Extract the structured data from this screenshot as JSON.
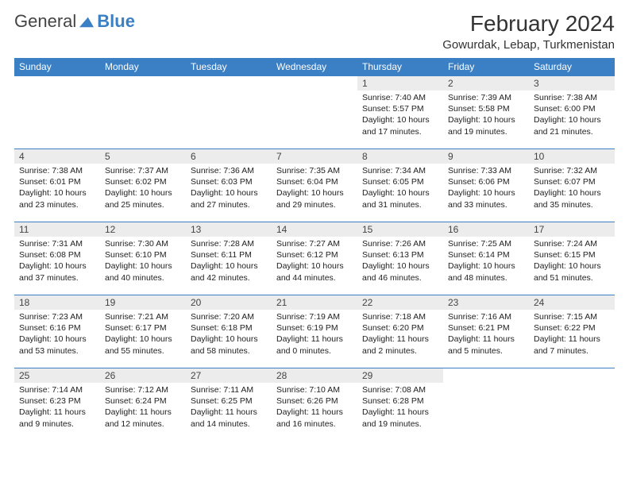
{
  "logo": {
    "text1": "General",
    "text2": "Blue"
  },
  "title": "February 2024",
  "location": "Gowurdak, Lebap, Turkmenistan",
  "colors": {
    "header_bg": "#3b7fc4",
    "daynum_bg": "#ececec",
    "border": "#3b7fc4"
  },
  "weekdays": [
    "Sunday",
    "Monday",
    "Tuesday",
    "Wednesday",
    "Thursday",
    "Friday",
    "Saturday"
  ],
  "weeks": [
    [
      null,
      null,
      null,
      null,
      {
        "n": "1",
        "sr": "Sunrise: 7:40 AM",
        "ss": "Sunset: 5:57 PM",
        "dl": "Daylight: 10 hours and 17 minutes."
      },
      {
        "n": "2",
        "sr": "Sunrise: 7:39 AM",
        "ss": "Sunset: 5:58 PM",
        "dl": "Daylight: 10 hours and 19 minutes."
      },
      {
        "n": "3",
        "sr": "Sunrise: 7:38 AM",
        "ss": "Sunset: 6:00 PM",
        "dl": "Daylight: 10 hours and 21 minutes."
      }
    ],
    [
      {
        "n": "4",
        "sr": "Sunrise: 7:38 AM",
        "ss": "Sunset: 6:01 PM",
        "dl": "Daylight: 10 hours and 23 minutes."
      },
      {
        "n": "5",
        "sr": "Sunrise: 7:37 AM",
        "ss": "Sunset: 6:02 PM",
        "dl": "Daylight: 10 hours and 25 minutes."
      },
      {
        "n": "6",
        "sr": "Sunrise: 7:36 AM",
        "ss": "Sunset: 6:03 PM",
        "dl": "Daylight: 10 hours and 27 minutes."
      },
      {
        "n": "7",
        "sr": "Sunrise: 7:35 AM",
        "ss": "Sunset: 6:04 PM",
        "dl": "Daylight: 10 hours and 29 minutes."
      },
      {
        "n": "8",
        "sr": "Sunrise: 7:34 AM",
        "ss": "Sunset: 6:05 PM",
        "dl": "Daylight: 10 hours and 31 minutes."
      },
      {
        "n": "9",
        "sr": "Sunrise: 7:33 AM",
        "ss": "Sunset: 6:06 PM",
        "dl": "Daylight: 10 hours and 33 minutes."
      },
      {
        "n": "10",
        "sr": "Sunrise: 7:32 AM",
        "ss": "Sunset: 6:07 PM",
        "dl": "Daylight: 10 hours and 35 minutes."
      }
    ],
    [
      {
        "n": "11",
        "sr": "Sunrise: 7:31 AM",
        "ss": "Sunset: 6:08 PM",
        "dl": "Daylight: 10 hours and 37 minutes."
      },
      {
        "n": "12",
        "sr": "Sunrise: 7:30 AM",
        "ss": "Sunset: 6:10 PM",
        "dl": "Daylight: 10 hours and 40 minutes."
      },
      {
        "n": "13",
        "sr": "Sunrise: 7:28 AM",
        "ss": "Sunset: 6:11 PM",
        "dl": "Daylight: 10 hours and 42 minutes."
      },
      {
        "n": "14",
        "sr": "Sunrise: 7:27 AM",
        "ss": "Sunset: 6:12 PM",
        "dl": "Daylight: 10 hours and 44 minutes."
      },
      {
        "n": "15",
        "sr": "Sunrise: 7:26 AM",
        "ss": "Sunset: 6:13 PM",
        "dl": "Daylight: 10 hours and 46 minutes."
      },
      {
        "n": "16",
        "sr": "Sunrise: 7:25 AM",
        "ss": "Sunset: 6:14 PM",
        "dl": "Daylight: 10 hours and 48 minutes."
      },
      {
        "n": "17",
        "sr": "Sunrise: 7:24 AM",
        "ss": "Sunset: 6:15 PM",
        "dl": "Daylight: 10 hours and 51 minutes."
      }
    ],
    [
      {
        "n": "18",
        "sr": "Sunrise: 7:23 AM",
        "ss": "Sunset: 6:16 PM",
        "dl": "Daylight: 10 hours and 53 minutes."
      },
      {
        "n": "19",
        "sr": "Sunrise: 7:21 AM",
        "ss": "Sunset: 6:17 PM",
        "dl": "Daylight: 10 hours and 55 minutes."
      },
      {
        "n": "20",
        "sr": "Sunrise: 7:20 AM",
        "ss": "Sunset: 6:18 PM",
        "dl": "Daylight: 10 hours and 58 minutes."
      },
      {
        "n": "21",
        "sr": "Sunrise: 7:19 AM",
        "ss": "Sunset: 6:19 PM",
        "dl": "Daylight: 11 hours and 0 minutes."
      },
      {
        "n": "22",
        "sr": "Sunrise: 7:18 AM",
        "ss": "Sunset: 6:20 PM",
        "dl": "Daylight: 11 hours and 2 minutes."
      },
      {
        "n": "23",
        "sr": "Sunrise: 7:16 AM",
        "ss": "Sunset: 6:21 PM",
        "dl": "Daylight: 11 hours and 5 minutes."
      },
      {
        "n": "24",
        "sr": "Sunrise: 7:15 AM",
        "ss": "Sunset: 6:22 PM",
        "dl": "Daylight: 11 hours and 7 minutes."
      }
    ],
    [
      {
        "n": "25",
        "sr": "Sunrise: 7:14 AM",
        "ss": "Sunset: 6:23 PM",
        "dl": "Daylight: 11 hours and 9 minutes."
      },
      {
        "n": "26",
        "sr": "Sunrise: 7:12 AM",
        "ss": "Sunset: 6:24 PM",
        "dl": "Daylight: 11 hours and 12 minutes."
      },
      {
        "n": "27",
        "sr": "Sunrise: 7:11 AM",
        "ss": "Sunset: 6:25 PM",
        "dl": "Daylight: 11 hours and 14 minutes."
      },
      {
        "n": "28",
        "sr": "Sunrise: 7:10 AM",
        "ss": "Sunset: 6:26 PM",
        "dl": "Daylight: 11 hours and 16 minutes."
      },
      {
        "n": "29",
        "sr": "Sunrise: 7:08 AM",
        "ss": "Sunset: 6:28 PM",
        "dl": "Daylight: 11 hours and 19 minutes."
      },
      null,
      null
    ]
  ]
}
